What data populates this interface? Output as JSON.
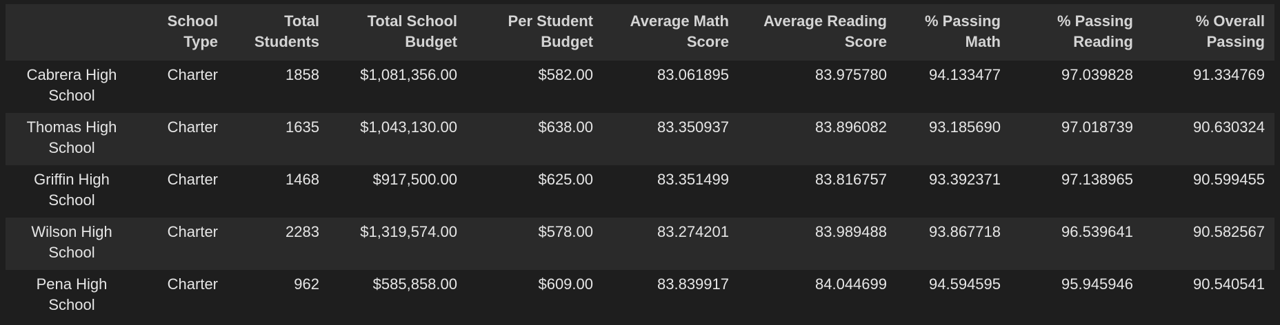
{
  "table": {
    "columns": [
      "",
      "School Type",
      "Total Students",
      "Total School Budget",
      "Per Student Budget",
      "Average Math Score",
      "Average Reading Score",
      "% Passing Math",
      "% Passing Reading",
      "% Overall Passing"
    ],
    "rows": [
      {
        "school": "Cabrera High School",
        "type": "Charter",
        "students": "1858",
        "budget": "$1,081,356.00",
        "per_student": "$582.00",
        "math": "83.061895",
        "reading": "83.975780",
        "pass_math": "94.133477",
        "pass_reading": "97.039828",
        "overall": "91.334769"
      },
      {
        "school": "Thomas High School",
        "type": "Charter",
        "students": "1635",
        "budget": "$1,043,130.00",
        "per_student": "$638.00",
        "math": "83.350937",
        "reading": "83.896082",
        "pass_math": "93.185690",
        "pass_reading": "97.018739",
        "overall": "90.630324"
      },
      {
        "school": "Griffin High School",
        "type": "Charter",
        "students": "1468",
        "budget": "$917,500.00",
        "per_student": "$625.00",
        "math": "83.351499",
        "reading": "83.816757",
        "pass_math": "93.392371",
        "pass_reading": "97.138965",
        "overall": "90.599455"
      },
      {
        "school": "Wilson High School",
        "type": "Charter",
        "students": "2283",
        "budget": "$1,319,574.00",
        "per_student": "$578.00",
        "math": "83.274201",
        "reading": "83.989488",
        "pass_math": "93.867718",
        "pass_reading": "96.539641",
        "overall": "90.582567"
      },
      {
        "school": "Pena High School",
        "type": "Charter",
        "students": "962",
        "budget": "$585,858.00",
        "per_student": "$609.00",
        "math": "83.839917",
        "reading": "84.044699",
        "pass_math": "94.594595",
        "pass_reading": "95.945946",
        "overall": "90.540541"
      }
    ]
  },
  "colors": {
    "background": "#1e1e1e",
    "header_background": "#2b2b2b",
    "stripe_background": "#2a2a2a",
    "text": "#e6e6e6"
  }
}
